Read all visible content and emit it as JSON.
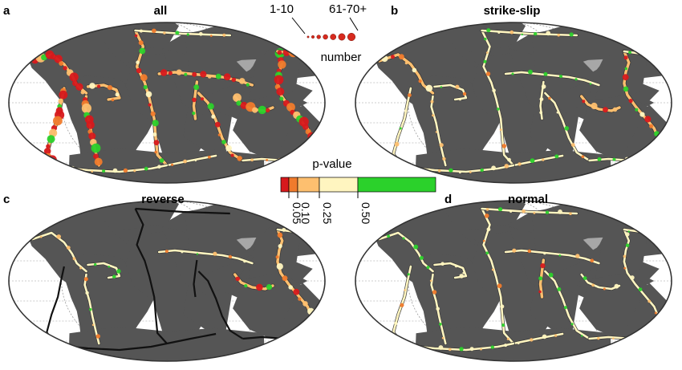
{
  "panels": [
    {
      "letter": "a",
      "title": "all",
      "focus": "all"
    },
    {
      "letter": "b",
      "title": "strike-slip",
      "focus": "strike-slip"
    },
    {
      "letter": "c",
      "title": "reverse",
      "focus": "reverse"
    },
    {
      "letter": "d",
      "title": "normal",
      "focus": "normal"
    }
  ],
  "size_legend": {
    "min_label": "1-10",
    "max_label": "61-70+",
    "caption": "number",
    "dot_color": "#d72a1e"
  },
  "color_legend": {
    "title": "p-value",
    "ticks": [
      "0.05",
      "0.10",
      "0.25",
      "0.50"
    ],
    "colors": [
      "#d7191c",
      "#f07b2c",
      "#fdbf6f",
      "#fff5c0",
      "#2bd12b"
    ]
  },
  "map_colors": {
    "ocean": "#ffffff",
    "land": "#a7a7a7",
    "graticule": "#9a9a9a",
    "outline": "#333333",
    "inactive_boundary": "#111111"
  }
}
